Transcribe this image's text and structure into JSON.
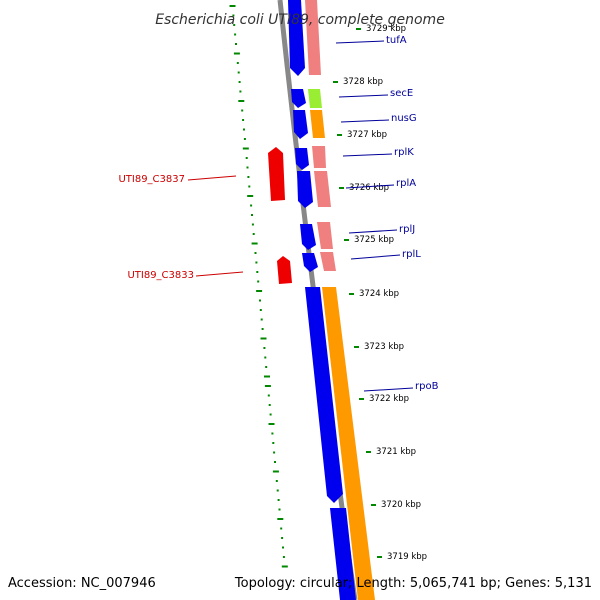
{
  "title": "Escherichia coli UTI89, complete genome",
  "footer": {
    "accession": "Accession: NC_007946",
    "summary": "Topology: circular; Length: 5,065,741 bp; Genes: 5,131"
  },
  "colors": {
    "forward_cds": "#0000ee",
    "reverse_cds": "#ee0000",
    "rrna_trna_feature": "#f08080",
    "gene_band_orange": "#ff9900",
    "gene_band_green": "#99ee33",
    "backbone": "#888888",
    "gc_skew_ticks": "#008800",
    "label_forward": "#000099",
    "label_reverse": "#cc0000"
  },
  "scale_marks": [
    "3729 kbp",
    "3728 kbp",
    "3727 kbp",
    "3726 kbp",
    "3725 kbp",
    "3724 kbp",
    "3723 kbp",
    "3722 kbp",
    "3721 kbp",
    "3720 kbp",
    "3719 kbp"
  ],
  "gene_labels": [
    {
      "name": "tufA",
      "strand": "forward"
    },
    {
      "name": "secE",
      "strand": "forward"
    },
    {
      "name": "nusG",
      "strand": "forward"
    },
    {
      "name": "rplK",
      "strand": "forward"
    },
    {
      "name": "rplA",
      "strand": "forward"
    },
    {
      "name": "rplJ",
      "strand": "forward"
    },
    {
      "name": "rplL",
      "strand": "forward"
    },
    {
      "name": "rpoB",
      "strand": "forward"
    },
    {
      "name": "UTI89_C3837",
      "strand": "reverse"
    },
    {
      "name": "UTI89_C3833",
      "strand": "reverse"
    }
  ]
}
